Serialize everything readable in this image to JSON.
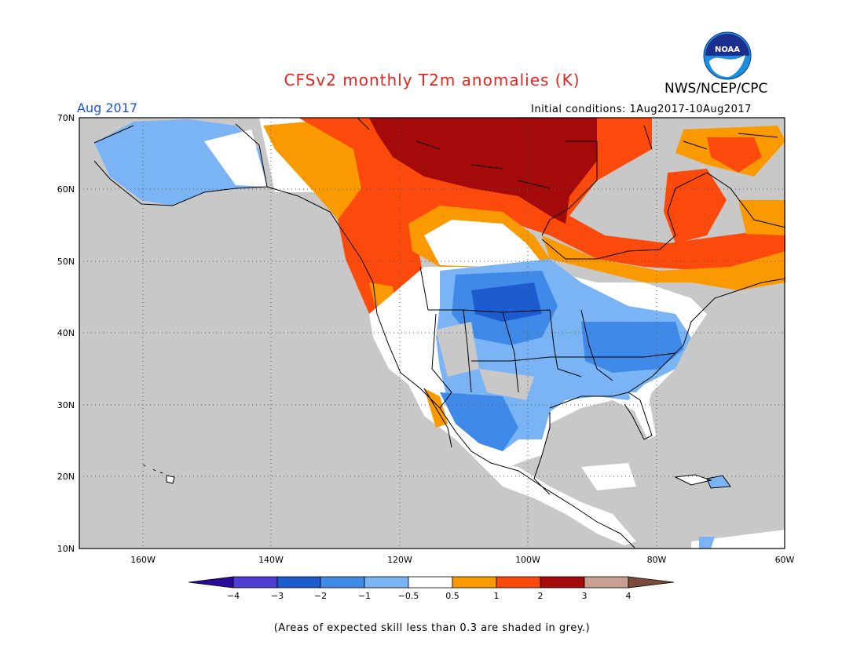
{
  "title": "CFSv2 monthly T2m anomalies (K)",
  "agency": "NWS/NCEP/CPC",
  "period": "Aug 2017",
  "initial_conditions": "Initial conditions: 1Aug2017-10Aug2017",
  "footnote": "(Areas of expected skill less than 0.3 are shaded in grey.)",
  "logo_text": "NOAA",
  "axes": {
    "lat_labels": [
      "70N",
      "60N",
      "50N",
      "40N",
      "30N",
      "20N",
      "10N"
    ],
    "lon_labels": [
      "160W",
      "140W",
      "120W",
      "100W",
      "80W",
      "60W"
    ]
  },
  "legend": {
    "ticks": [
      "−4",
      "−3",
      "−2",
      "−1",
      "−0.5",
      "0.5",
      "1",
      "2",
      "3",
      "4"
    ],
    "colors": [
      "#2a0a9a",
      "#4f3ed2",
      "#1d5ccf",
      "#3f8ae8",
      "#7ab4f5",
      "#ffffff",
      "#fb9a00",
      "#fc4a0c",
      "#a50a0a",
      "#c9a090",
      "#7a4a3a"
    ]
  },
  "colors": {
    "grey": "#c8c8c8",
    "white": "#ffffff",
    "light_blue": "#7ab4f5",
    "blue": "#3f8ae8",
    "dark_blue": "#1d5ccf",
    "orange": "#fb9a00",
    "red_orange": "#fc4a0c",
    "dark_red": "#a50a0a"
  }
}
